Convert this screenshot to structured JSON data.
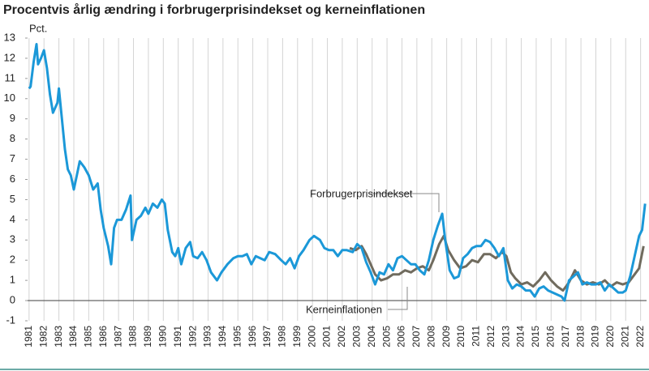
{
  "chart_data": {
    "type": "line",
    "title": "Procentvis årlig ændring i forbrugerprisindekset og kerneinflationen",
    "y_label": "Pct.",
    "xlim": [
      1980.9,
      2022.4
    ],
    "ylim": [
      -1,
      13
    ],
    "xticks": [
      1981,
      1982,
      1983,
      1984,
      1985,
      1986,
      1987,
      1988,
      1989,
      1990,
      1991,
      1992,
      1993,
      1994,
      1995,
      1996,
      1997,
      1998,
      1999,
      2000,
      2001,
      2002,
      2003,
      2004,
      2005,
      2006,
      2007,
      2008,
      2009,
      2010,
      2011,
      2012,
      2013,
      2014,
      2015,
      2016,
      2017,
      2018,
      2019,
      2020,
      2021,
      2022
    ],
    "yticks": [
      -1,
      0,
      1,
      2,
      3,
      4,
      5,
      6,
      7,
      8,
      9,
      10,
      11,
      12,
      13
    ],
    "grid": true,
    "series": [
      {
        "name": "Forbrugerprisindekset",
        "color": "#1b98d8",
        "x": [
          1981.0,
          1981.1,
          1981.3,
          1981.5,
          1981.6,
          1981.8,
          1982.0,
          1982.2,
          1982.4,
          1982.6,
          1982.9,
          1983.0,
          1983.2,
          1983.4,
          1983.6,
          1983.8,
          1984.0,
          1984.2,
          1984.4,
          1984.7,
          1985.0,
          1985.3,
          1985.6,
          1985.8,
          1986.0,
          1986.3,
          1986.5,
          1986.7,
          1986.9,
          1987.2,
          1987.5,
          1987.8,
          1987.9,
          1988.2,
          1988.5,
          1988.8,
          1989.0,
          1989.3,
          1989.6,
          1989.9,
          1990.1,
          1990.3,
          1990.6,
          1990.8,
          1991.0,
          1991.2,
          1991.5,
          1991.8,
          1992.0,
          1992.3,
          1992.6,
          1992.9,
          1993.2,
          1993.6,
          1993.9,
          1994.3,
          1994.7,
          1995.0,
          1995.3,
          1995.6,
          1995.9,
          1996.2,
          1996.5,
          1996.8,
          1997.1,
          1997.5,
          1997.9,
          1998.2,
          1998.5,
          1998.8,
          1999.1,
          1999.4,
          1999.8,
          2000.1,
          2000.5,
          2000.8,
          2001.1,
          2001.4,
          2001.7,
          2002.0,
          2002.3,
          2002.7,
          2003.0,
          2003.3,
          2003.6,
          2003.9,
          2004.2,
          2004.5,
          2004.8,
          2005.1,
          2005.4,
          2005.7,
          2006.0,
          2006.3,
          2006.6,
          2006.9,
          2007.2,
          2007.5,
          2007.8,
          2008.1,
          2008.4,
          2008.7,
          2008.9,
          2009.2,
          2009.5,
          2009.8,
          2010.1,
          2010.4,
          2010.7,
          2011.0,
          2011.3,
          2011.6,
          2011.9,
          2012.2,
          2012.5,
          2012.8,
          2013.1,
          2013.4,
          2013.7,
          2014.0,
          2014.3,
          2014.6,
          2014.9,
          2015.2,
          2015.5,
          2015.8,
          2016.1,
          2016.4,
          2016.7,
          2016.9,
          2017.2,
          2017.5,
          2017.8,
          2018.1,
          2018.4,
          2018.7,
          2019.0,
          2019.3,
          2019.6,
          2019.9,
          2020.2,
          2020.5,
          2020.8,
          2021.0,
          2021.3,
          2021.6,
          2021.9,
          2022.1,
          2022.3
        ],
        "values": [
          10.5,
          10.6,
          11.8,
          12.7,
          11.7,
          12.0,
          12.4,
          11.5,
          10.2,
          9.3,
          9.8,
          10.5,
          9.0,
          7.5,
          6.5,
          6.2,
          5.5,
          6.2,
          6.9,
          6.6,
          6.2,
          5.5,
          5.8,
          4.5,
          3.6,
          2.7,
          1.8,
          3.6,
          4.0,
          4.0,
          4.5,
          5.2,
          3.0,
          4.0,
          4.2,
          4.6,
          4.3,
          4.8,
          4.6,
          5.0,
          4.8,
          3.5,
          2.4,
          2.2,
          2.6,
          1.8,
          2.6,
          2.9,
          2.2,
          2.1,
          2.4,
          2.0,
          1.4,
          1.0,
          1.4,
          1.8,
          2.1,
          2.2,
          2.2,
          2.3,
          1.8,
          2.2,
          2.1,
          2.0,
          2.4,
          2.3,
          2.0,
          1.8,
          2.1,
          1.6,
          2.2,
          2.5,
          3.0,
          3.2,
          3.0,
          2.6,
          2.5,
          2.5,
          2.2,
          2.5,
          2.5,
          2.4,
          2.8,
          2.6,
          1.9,
          1.4,
          0.8,
          1.4,
          1.3,
          1.8,
          1.5,
          2.1,
          2.2,
          2.0,
          1.8,
          1.8,
          1.5,
          1.3,
          2.0,
          3.0,
          3.7,
          4.3,
          3.0,
          1.5,
          1.1,
          1.2,
          2.1,
          2.3,
          2.6,
          2.7,
          2.7,
          3.0,
          2.9,
          2.6,
          2.2,
          2.6,
          1.0,
          0.6,
          0.8,
          0.7,
          0.5,
          0.5,
          0.2,
          0.6,
          0.7,
          0.5,
          0.4,
          0.3,
          0.2,
          0.0,
          1.0,
          1.2,
          1.4,
          0.8,
          0.9,
          0.8,
          0.8,
          0.9,
          0.5,
          0.8,
          0.6,
          0.4,
          0.4,
          0.5,
          1.2,
          2.2,
          3.2,
          3.5,
          4.8
        ]
      },
      {
        "name": "Kerneinflationen",
        "color": "#706b5e",
        "x": [
          2002.5,
          2002.9,
          2003.3,
          2003.6,
          2003.9,
          2004.2,
          2004.6,
          2005.0,
          2005.4,
          2005.8,
          2006.2,
          2006.6,
          2007.0,
          2007.4,
          2007.8,
          2008.1,
          2008.5,
          2008.8,
          2009.1,
          2009.5,
          2009.9,
          2010.3,
          2010.7,
          2011.1,
          2011.5,
          2011.9,
          2012.3,
          2012.7,
          2013.0,
          2013.3,
          2013.6,
          2014.0,
          2014.4,
          2014.8,
          2015.2,
          2015.6,
          2016.0,
          2016.4,
          2016.8,
          2017.2,
          2017.6,
          2018.0,
          2018.4,
          2018.8,
          2019.2,
          2019.6,
          2020.0,
          2020.4,
          2020.8,
          2021.2,
          2021.6,
          2021.9,
          2022.2
        ],
        "values": [
          2.6,
          2.5,
          2.7,
          2.3,
          1.8,
          1.3,
          1.0,
          1.1,
          1.3,
          1.3,
          1.5,
          1.4,
          1.6,
          1.7,
          1.5,
          2.0,
          2.8,
          3.2,
          2.5,
          2.0,
          1.6,
          1.7,
          2.0,
          1.9,
          2.3,
          2.3,
          2.1,
          2.4,
          2.2,
          1.4,
          1.1,
          0.8,
          0.9,
          0.7,
          1.0,
          1.4,
          1.0,
          0.7,
          0.5,
          0.9,
          1.5,
          1.0,
          0.8,
          0.9,
          0.8,
          1.0,
          0.7,
          0.9,
          0.8,
          0.9,
          1.3,
          1.6,
          2.7
        ]
      }
    ]
  }
}
